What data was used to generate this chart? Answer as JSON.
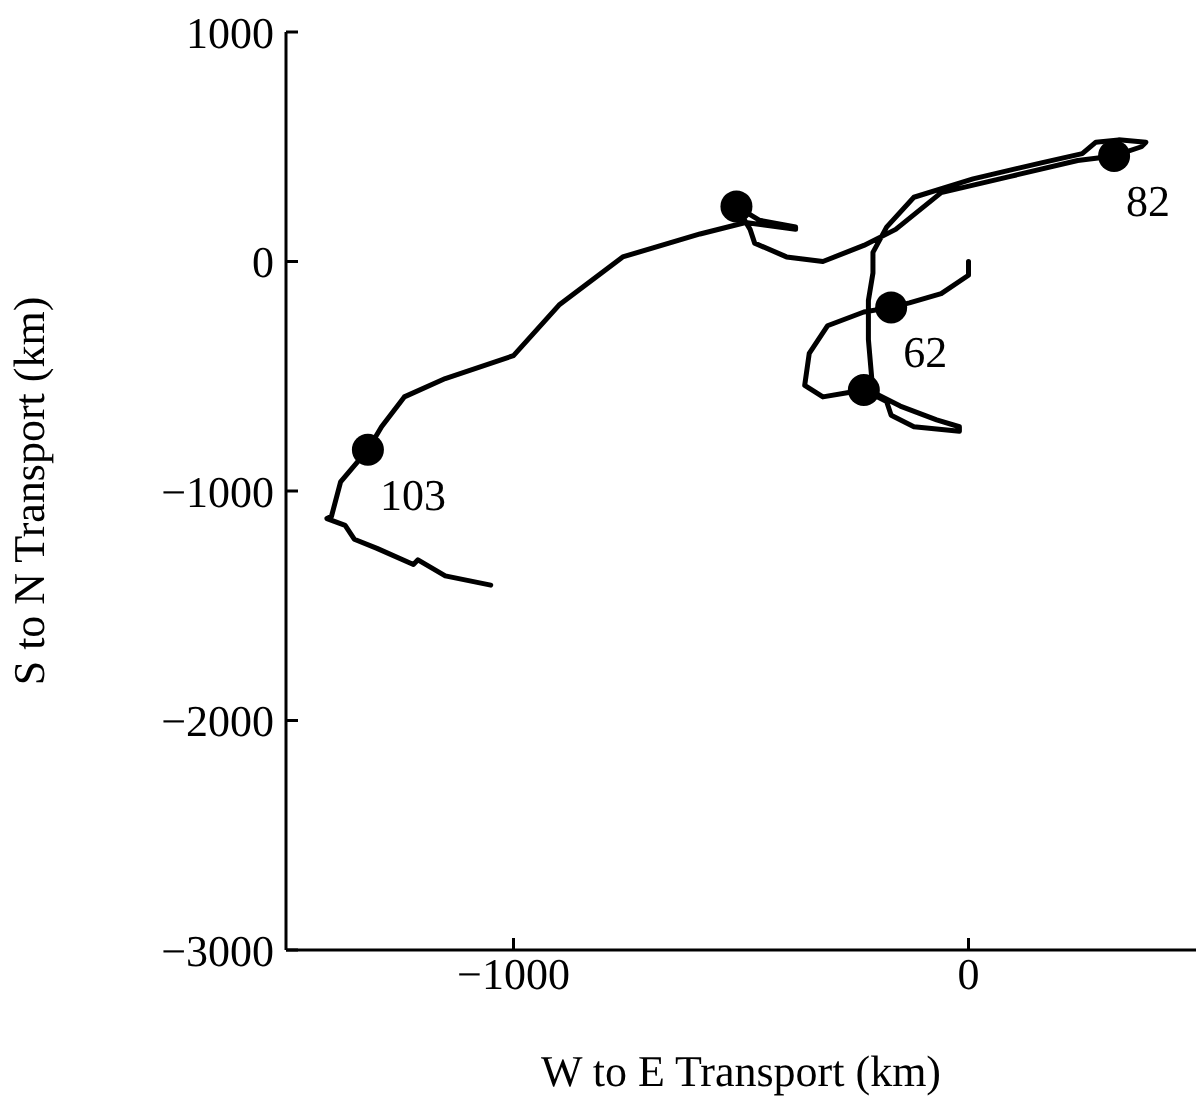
{
  "chart_data": {
    "type": "line",
    "xlabel": "W to E Transport (km)",
    "ylabel": "S to N Transport (km)",
    "xlim": [
      -1500,
      500
    ],
    "ylim": [
      -3000,
      1000
    ],
    "xticks": [
      -1000,
      0
    ],
    "yticks": [
      -3000,
      -2000,
      -1000,
      0,
      1000
    ],
    "grid": false,
    "annotations": [
      {
        "text": "62",
        "x": -170,
        "y": -200
      },
      {
        "text": "82",
        "x": 320,
        "y": 460
      },
      {
        "text": "103",
        "x": -1320,
        "y": -820
      }
    ],
    "series": [
      {
        "color": "#000000",
        "marker": "none",
        "line_style": "solid",
        "x": [
          0,
          0,
          -60,
          -130,
          -170,
          -230,
          -310,
          -350,
          -360,
          -320,
          -260,
          -230,
          -180,
          -170,
          -120,
          -20,
          -20,
          -70,
          -150,
          -210,
          -220,
          -220,
          -210,
          -210,
          -180,
          -120,
          10,
          160,
          250,
          280,
          330,
          390,
          380,
          320,
          240,
          90,
          -60,
          -160,
          -230,
          -320,
          -400,
          -470,
          -480,
          -510,
          -460,
          -380,
          -380,
          -490,
          -590,
          -760,
          -900,
          -1000,
          -1150,
          -1240,
          -1290,
          -1320,
          -1380,
          -1400,
          -1410,
          -1370,
          -1350,
          -1300,
          -1220,
          -1210,
          -1150,
          -1050
        ],
        "values": [
          0,
          -60,
          -140,
          -180,
          -200,
          -220,
          -280,
          -400,
          -540,
          -590,
          -570,
          -560,
          -610,
          -670,
          -720,
          -740,
          -720,
          -690,
          -630,
          -570,
          -340,
          -170,
          -50,
          40,
          150,
          280,
          360,
          430,
          470,
          520,
          530,
          520,
          500,
          460,
          440,
          370,
          300,
          140,
          70,
          0,
          20,
          80,
          140,
          240,
          180,
          150,
          140,
          170,
          120,
          20,
          -190,
          -410,
          -510,
          -590,
          -720,
          -820,
          -960,
          -1110,
          -1120,
          -1150,
          -1210,
          -1250,
          -1320,
          -1300,
          -1370,
          -1410
        ]
      },
      {
        "type": "scatter",
        "color": "#000000",
        "marker": "circle",
        "x": [
          -170,
          320,
          -1320,
          -510,
          -230
        ],
        "values": [
          -200,
          460,
          -820,
          240,
          -560
        ]
      }
    ]
  }
}
